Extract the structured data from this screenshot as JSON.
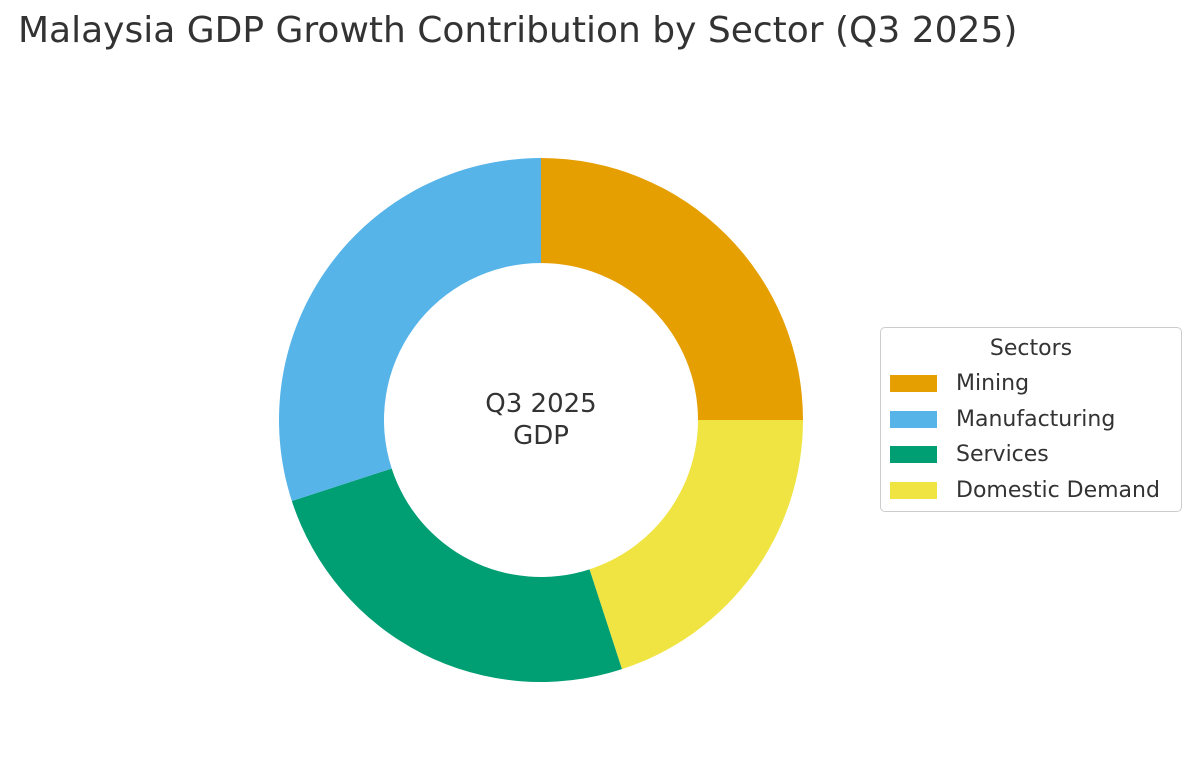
{
  "chart_data": {
    "type": "pie",
    "variant": "donut",
    "title": "Malaysia GDP Growth Contribution by Sector (Q3 2025)",
    "center_label": [
      "Q3 2025",
      "GDP"
    ],
    "legend_title": "Sectors",
    "legend_placement": "right",
    "categories": [
      "Mining",
      "Manufacturing",
      "Services",
      "Domestic Demand"
    ],
    "values": [
      25,
      30,
      25,
      20
    ],
    "colors": [
      "#E69F00",
      "#56B4E9",
      "#009E73",
      "#F0E442"
    ],
    "display_order": [
      "Mining",
      "Domestic Demand",
      "Services",
      "Manufacturing"
    ]
  }
}
